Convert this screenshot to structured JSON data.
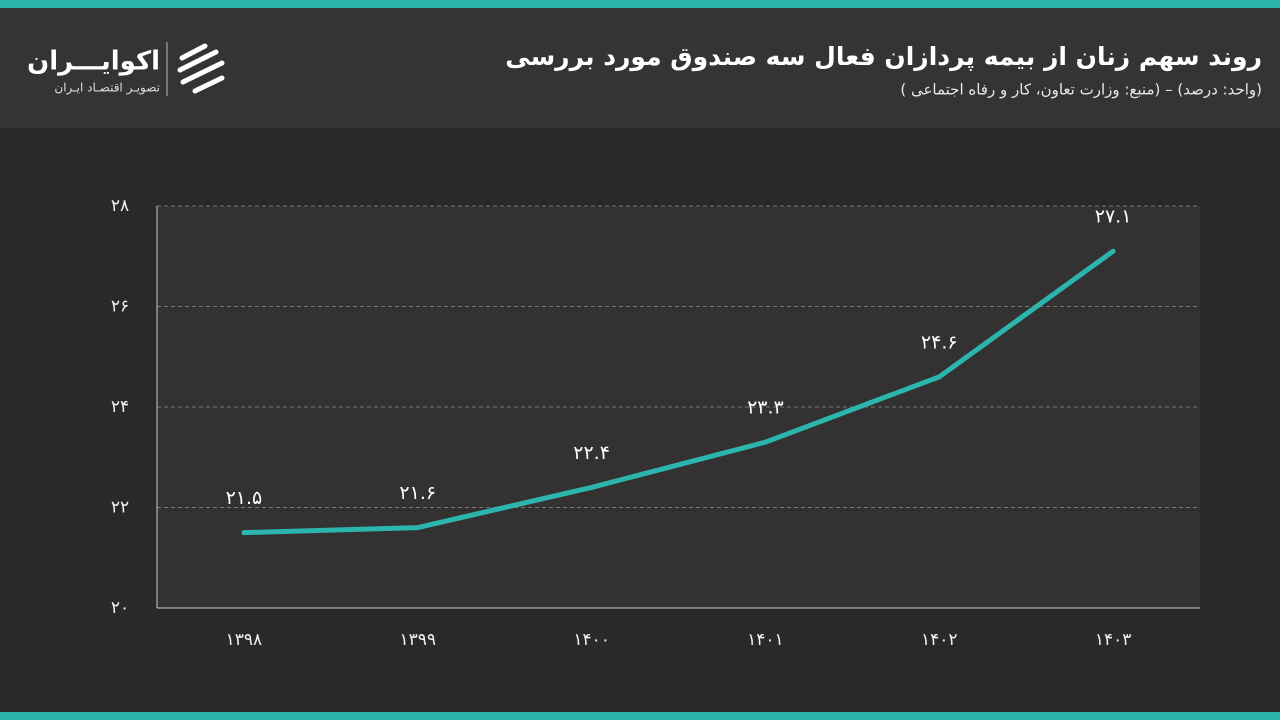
{
  "logo": {
    "name": "اکوایـــران",
    "tagline": "تصویـر اقتصـاد ایـران"
  },
  "chart_data": {
    "type": "line",
    "title": "روند سهم زنان از بیمه پردازان فعال سه صندوق مورد بررسی",
    "subtitle": "(واحد: درصد) – (منبع: وزارت تعاون، کار و رفاه اجتماعی )",
    "categories": [
      "۱۳۹۸",
      "۱۳۹۹",
      "۱۴۰۰",
      "۱۴۰۱",
      "۱۴۰۲",
      "۱۴۰۳"
    ],
    "values": [
      21.5,
      21.6,
      22.4,
      23.3,
      24.6,
      27.1
    ],
    "value_labels": [
      "۲۱.۵",
      "۲۱.۶",
      "۲۲.۴",
      "۲۳.۳",
      "۲۴.۶",
      "۲۷.۱"
    ],
    "color": "#2cb5ad",
    "ylim": [
      20,
      28
    ],
    "yticks": [
      {
        "value": 20,
        "label": "۲۰"
      },
      {
        "value": 22,
        "label": "۲۲"
      },
      {
        "value": 24,
        "label": "۲۴"
      },
      {
        "value": 26,
        "label": "۲۶"
      },
      {
        "value": 28,
        "label": "۲۸"
      }
    ],
    "grid": true
  }
}
